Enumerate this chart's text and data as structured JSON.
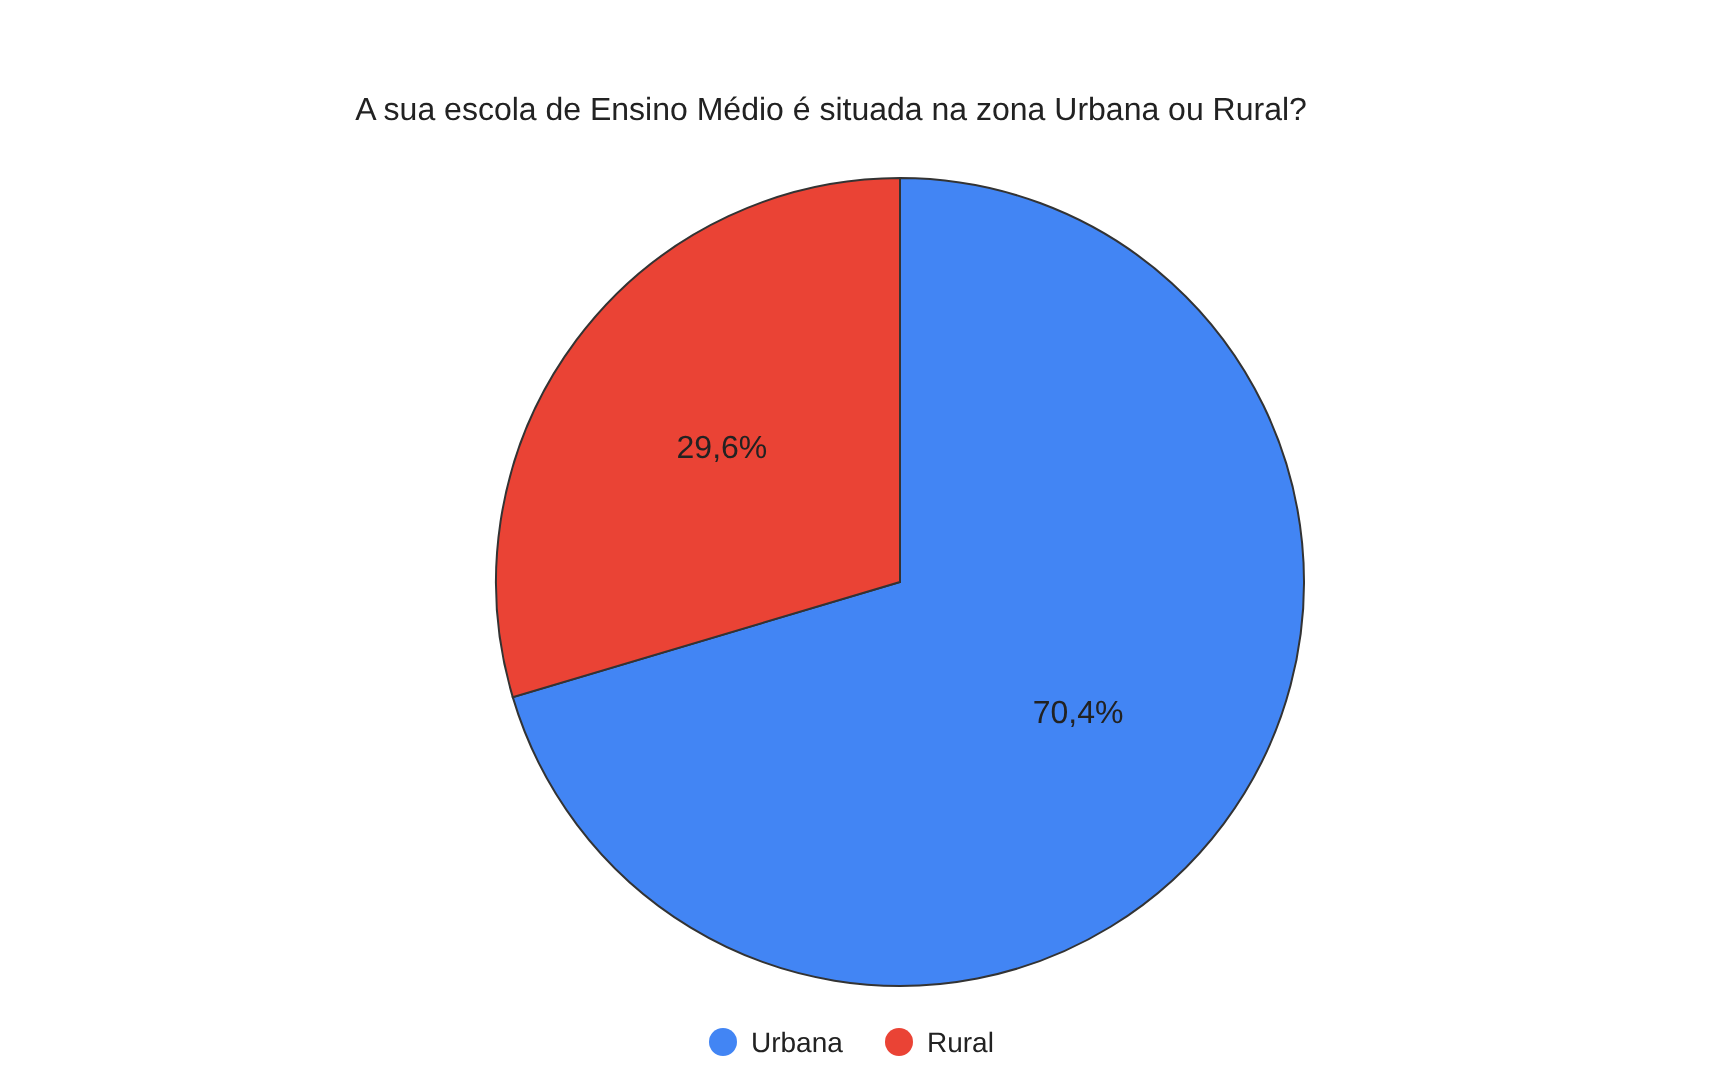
{
  "chart_data": {
    "type": "pie",
    "title": "A sua escola de Ensino Médio é situada na zona Urbana ou Rural?",
    "categories": [
      "Urbana",
      "Rural"
    ],
    "values": [
      70.4,
      29.6
    ],
    "colors": [
      "#4285f4",
      "#ea4335"
    ],
    "value_labels": [
      "70,4%",
      "29,6%"
    ],
    "legend": "bottom"
  }
}
